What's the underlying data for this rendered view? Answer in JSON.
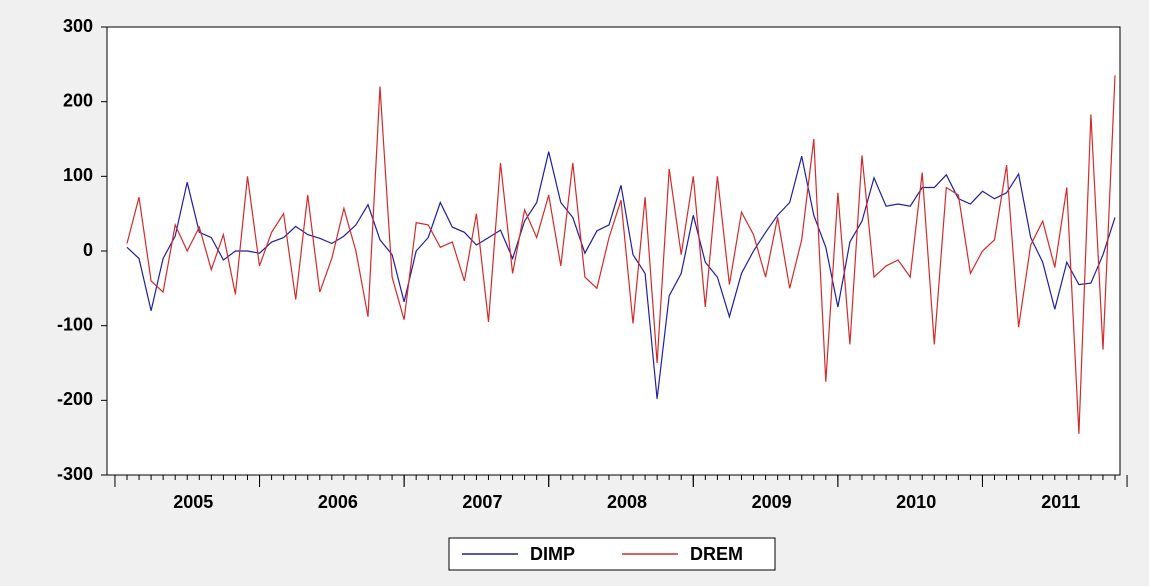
{
  "chart_data": {
    "type": "line",
    "categories": [
      null,
      null,
      null,
      null,
      null,
      "2005",
      null,
      null,
      null,
      null,
      null,
      null,
      null,
      null,
      null,
      null,
      null,
      "2006",
      null,
      null,
      null,
      null,
      null,
      null,
      null,
      null,
      null,
      null,
      null,
      "2007",
      null,
      null,
      null,
      null,
      null,
      null,
      null,
      null,
      null,
      null,
      null,
      "2008",
      null,
      null,
      null,
      null,
      null,
      null,
      null,
      null,
      null,
      null,
      null,
      "2009",
      null,
      null,
      null,
      null,
      null,
      null,
      null,
      null,
      null,
      null,
      null,
      "2010",
      null,
      null,
      null,
      null,
      null,
      null,
      null,
      null,
      null,
      null,
      null,
      "2011",
      null,
      null,
      null,
      null,
      null
    ],
    "series": [
      {
        "name": "DIMP",
        "color": "#1f1fa0",
        "values": [
          5,
          -10,
          -80,
          -10,
          20,
          92,
          25,
          18,
          -12,
          0,
          0,
          -3,
          12,
          18,
          33,
          22,
          17,
          10,
          20,
          35,
          62,
          15,
          -5,
          -68,
          0,
          18,
          65,
          32,
          25,
          8,
          18,
          28,
          -10,
          40,
          65,
          133,
          65,
          45,
          -3,
          27,
          35,
          88,
          -5,
          -30,
          -198,
          -60,
          -30,
          48,
          -15,
          -35,
          -88,
          -30,
          0,
          25,
          48,
          65,
          127,
          48,
          5,
          -75,
          12,
          40,
          98,
          60,
          63,
          60,
          85,
          85,
          102,
          70,
          63,
          80,
          70,
          78,
          103,
          18,
          -15,
          -78,
          -15,
          -45,
          -43,
          -5,
          45
        ]
      },
      {
        "name": "DREM",
        "color": "#d42a2a",
        "values": [
          10,
          72,
          -40,
          -55,
          35,
          0,
          32,
          -25,
          22,
          -58,
          100,
          -20,
          25,
          50,
          -65,
          75,
          -55,
          -10,
          57,
          0,
          -88,
          220,
          -35,
          -92,
          38,
          35,
          5,
          12,
          -40,
          50,
          -95,
          118,
          -30,
          55,
          18,
          75,
          -20,
          118,
          -35,
          -50,
          18,
          68,
          -97,
          72,
          -150,
          110,
          -5,
          100,
          -75,
          100,
          -45,
          52,
          22,
          -35,
          45,
          -50,
          15,
          150,
          -175,
          78,
          -125,
          128,
          -35,
          -20,
          -12,
          -35,
          105,
          -125,
          85,
          75,
          -30,
          0,
          15,
          115,
          -102,
          8,
          40,
          -22,
          85,
          -245,
          183,
          -132,
          235
        ]
      }
    ],
    "ylim": [
      -300,
      300
    ],
    "yticks": [
      -300,
      -200,
      -100,
      0,
      100,
      200,
      300
    ]
  }
}
